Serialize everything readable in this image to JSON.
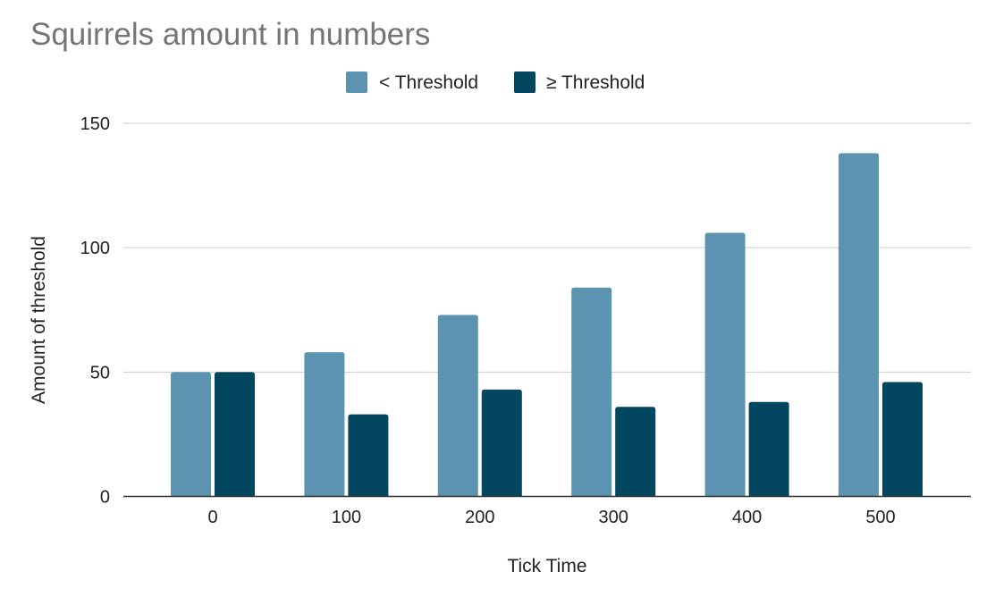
{
  "chart_data": {
    "type": "bar",
    "title": "Squirrels amount in numbers",
    "xlabel": "Tick Time",
    "ylabel": "Amount of threshold",
    "categories": [
      "0",
      "100",
      "200",
      "300",
      "400",
      "500"
    ],
    "series": [
      {
        "name": "< Threshold",
        "color": "#5b93b1",
        "values": [
          50,
          58,
          73,
          84,
          106,
          138
        ]
      },
      {
        "name": "≥ Threshold",
        "color": "#03465f",
        "values": [
          50,
          33,
          43,
          36,
          38,
          46
        ]
      }
    ],
    "ylim": [
      0,
      150
    ],
    "yticks": [
      0,
      50,
      100,
      150
    ],
    "grid": true,
    "legend_position": "top"
  }
}
